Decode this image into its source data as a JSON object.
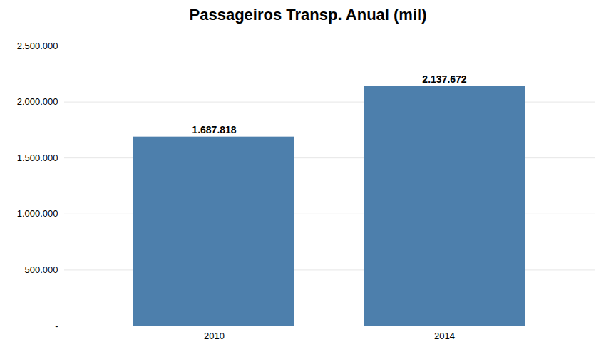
{
  "chart_data": {
    "type": "bar",
    "title": "Passageiros Transp. Anual (mil)",
    "categories": [
      "2010",
      "2014"
    ],
    "values": [
      1687818,
      2137672
    ],
    "value_labels": [
      "1.687.818",
      "2.137.672"
    ],
    "data_labels": true,
    "color": "#4d7fac",
    "ylim": [
      0,
      2500000
    ],
    "yticks": [
      {
        "value": 0,
        "label": "-"
      },
      {
        "value": 500000,
        "label": "500.000"
      },
      {
        "value": 1000000,
        "label": "1.000.000"
      },
      {
        "value": 1500000,
        "label": "1.500.000"
      },
      {
        "value": 2000000,
        "label": "2.000.000"
      },
      {
        "value": 2500000,
        "label": "2.500.000"
      }
    ],
    "grid": true
  }
}
